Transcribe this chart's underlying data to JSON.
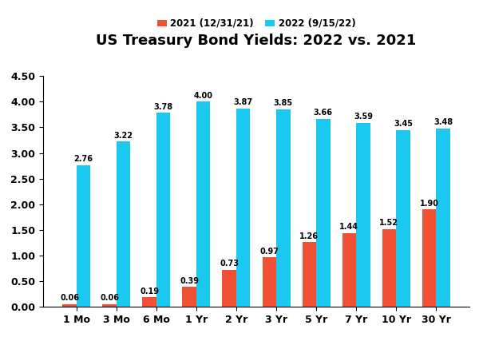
{
  "title": "US Treasury Bond Yields: 2022 vs. 2021",
  "categories": [
    "1 Mo",
    "3 Mo",
    "6 Mo",
    "1 Yr",
    "2 Yr",
    "3 Yr",
    "5 Yr",
    "7 Yr",
    "10 Yr",
    "30 Yr"
  ],
  "values_2021": [
    0.06,
    0.06,
    0.19,
    0.39,
    0.73,
    0.97,
    1.26,
    1.44,
    1.52,
    1.9
  ],
  "values_2022": [
    2.76,
    3.22,
    3.78,
    4.0,
    3.87,
    3.85,
    3.66,
    3.59,
    3.45,
    3.48
  ],
  "color_2021": "#F05033",
  "color_2022": "#1BC8F0",
  "legend_2021": "2021 (12/31/21)",
  "legend_2022": "2022 (9/15/22)",
  "ylim": [
    0,
    4.5
  ],
  "yticks": [
    0.0,
    0.5,
    1.0,
    1.5,
    2.0,
    2.5,
    3.0,
    3.5,
    4.0,
    4.5
  ],
  "bar_width": 0.35,
  "label_fontsize": 7.0,
  "title_fontsize": 13,
  "legend_fontsize": 8.5,
  "tick_fontsize": 9,
  "background_color": "#FFFFFF"
}
